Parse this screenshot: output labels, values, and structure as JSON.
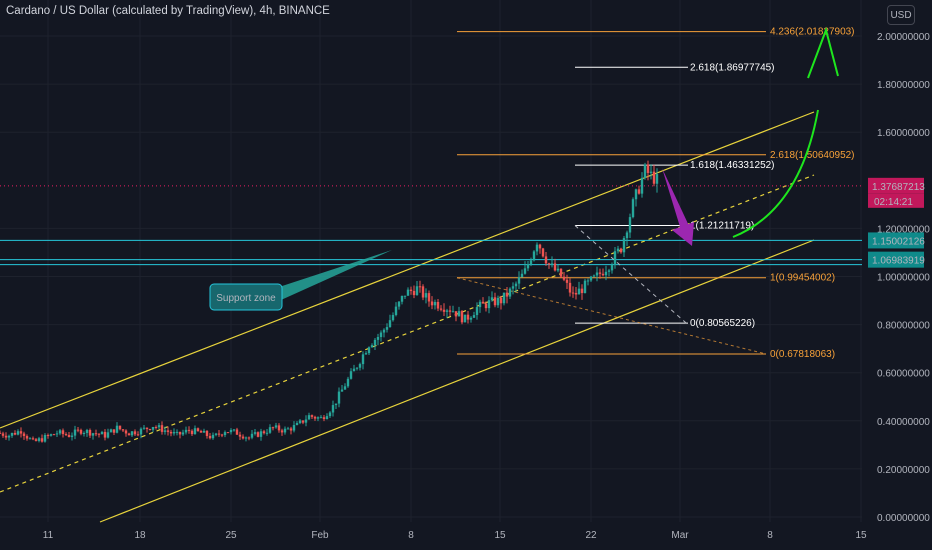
{
  "header": {
    "title": "Cardano / US Dollar (calculated by TradingView), 4h, BINANCE",
    "currency_button": "USD"
  },
  "colors": {
    "background": "#131722",
    "bull": "#26a69a",
    "bear": "#ef5350",
    "channel": "#e7d33c",
    "fib_orange": "#f7a139",
    "fib_white": "#ffffff",
    "support": "#26c6da",
    "price_red": "#c2185b",
    "arrow_green": "#1ee61e",
    "arrow_purple": "#9c27b0"
  },
  "chart_data": {
    "type": "candlestick",
    "symbol": "ADAUSD",
    "timeframe": "4h",
    "exchange": "BINANCE",
    "x_tick_labels": [
      "11",
      "18",
      "25",
      "Feb",
      "8",
      "15",
      "22",
      "Mar",
      "8",
      "15"
    ],
    "y_tick_labels": [
      "0.00000000",
      "0.20000000",
      "0.40000000",
      "0.60000000",
      "0.80000000",
      "1.00000000",
      "1.20000000",
      "1.60000000",
      "1.80000000",
      "2.00000000"
    ],
    "ylim": [
      0.0,
      2.2
    ],
    "price_path": [
      [
        0,
        0.35
      ],
      [
        1,
        0.34
      ],
      [
        2,
        0.36
      ],
      [
        3,
        0.31
      ],
      [
        4,
        0.33
      ],
      [
        5,
        0.35
      ],
      [
        6,
        0.34
      ],
      [
        7,
        0.36
      ],
      [
        8,
        0.35
      ],
      [
        9,
        0.34
      ],
      [
        10,
        0.37
      ],
      [
        11,
        0.35
      ],
      [
        12,
        0.36
      ],
      [
        13,
        0.38
      ],
      [
        14,
        0.36
      ],
      [
        15,
        0.34
      ],
      [
        16,
        0.36
      ],
      [
        17,
        0.35
      ],
      [
        18,
        0.33
      ],
      [
        19,
        0.36
      ],
      [
        20,
        0.35
      ],
      [
        21,
        0.33
      ],
      [
        22,
        0.35
      ],
      [
        23,
        0.37
      ],
      [
        24,
        0.36
      ],
      [
        25,
        0.38
      ],
      [
        26,
        0.42
      ],
      [
        27,
        0.41
      ],
      [
        28,
        0.46
      ],
      [
        29,
        0.55
      ],
      [
        30,
        0.63
      ],
      [
        31,
        0.72
      ],
      [
        32,
        0.76
      ],
      [
        33,
        0.84
      ],
      [
        34,
        0.93
      ],
      [
        35,
        0.95
      ],
      [
        36,
        0.9
      ],
      [
        37,
        0.88
      ],
      [
        38,
        0.86
      ],
      [
        39,
        0.82
      ],
      [
        40,
        0.87
      ],
      [
        41,
        0.89
      ],
      [
        42,
        0.9
      ],
      [
        43,
        0.95
      ],
      [
        44,
        1.02
      ],
      [
        45,
        1.15
      ],
      [
        46,
        1.05
      ],
      [
        47,
        1.0
      ],
      [
        48,
        0.92
      ],
      [
        49,
        0.96
      ],
      [
        50,
        1.0
      ],
      [
        51,
        1.05
      ],
      [
        52,
        1.12
      ],
      [
        53,
        1.3
      ],
      [
        54,
        1.44
      ],
      [
        55,
        1.4
      ]
    ],
    "fib_levels": [
      {
        "label": "4.236(2.01827903)",
        "value": 2.018,
        "color": "orange"
      },
      {
        "label": "2.618(1.86977745)",
        "value": 1.87,
        "color": "white"
      },
      {
        "label": "2.618(1.50640952)",
        "value": 1.506,
        "color": "orange"
      },
      {
        "label": "1.618(1.46331252)",
        "value": 1.463,
        "color": "white"
      },
      {
        "label": "1(1.21211719)",
        "value": 1.212,
        "color": "white"
      },
      {
        "label": "1(0.99454002)",
        "value": 0.995,
        "color": "orange"
      },
      {
        "label": "0(0.80565226)",
        "value": 0.806,
        "color": "white"
      },
      {
        "label": "0(0.67818063)",
        "value": 0.678,
        "color": "orange"
      }
    ],
    "support_levels": [
      {
        "label": "1.15002126",
        "value": 1.15
      },
      {
        "label": "1.06983919",
        "value": 1.07
      }
    ],
    "current_price": {
      "label": "1.37687213",
      "value": 1.377,
      "countdown": "02:14:21"
    },
    "annotations": [
      {
        "text": "Support zone"
      }
    ],
    "channel_lines": "rising parallel channel (solid upper/lower, dashed midline)"
  }
}
